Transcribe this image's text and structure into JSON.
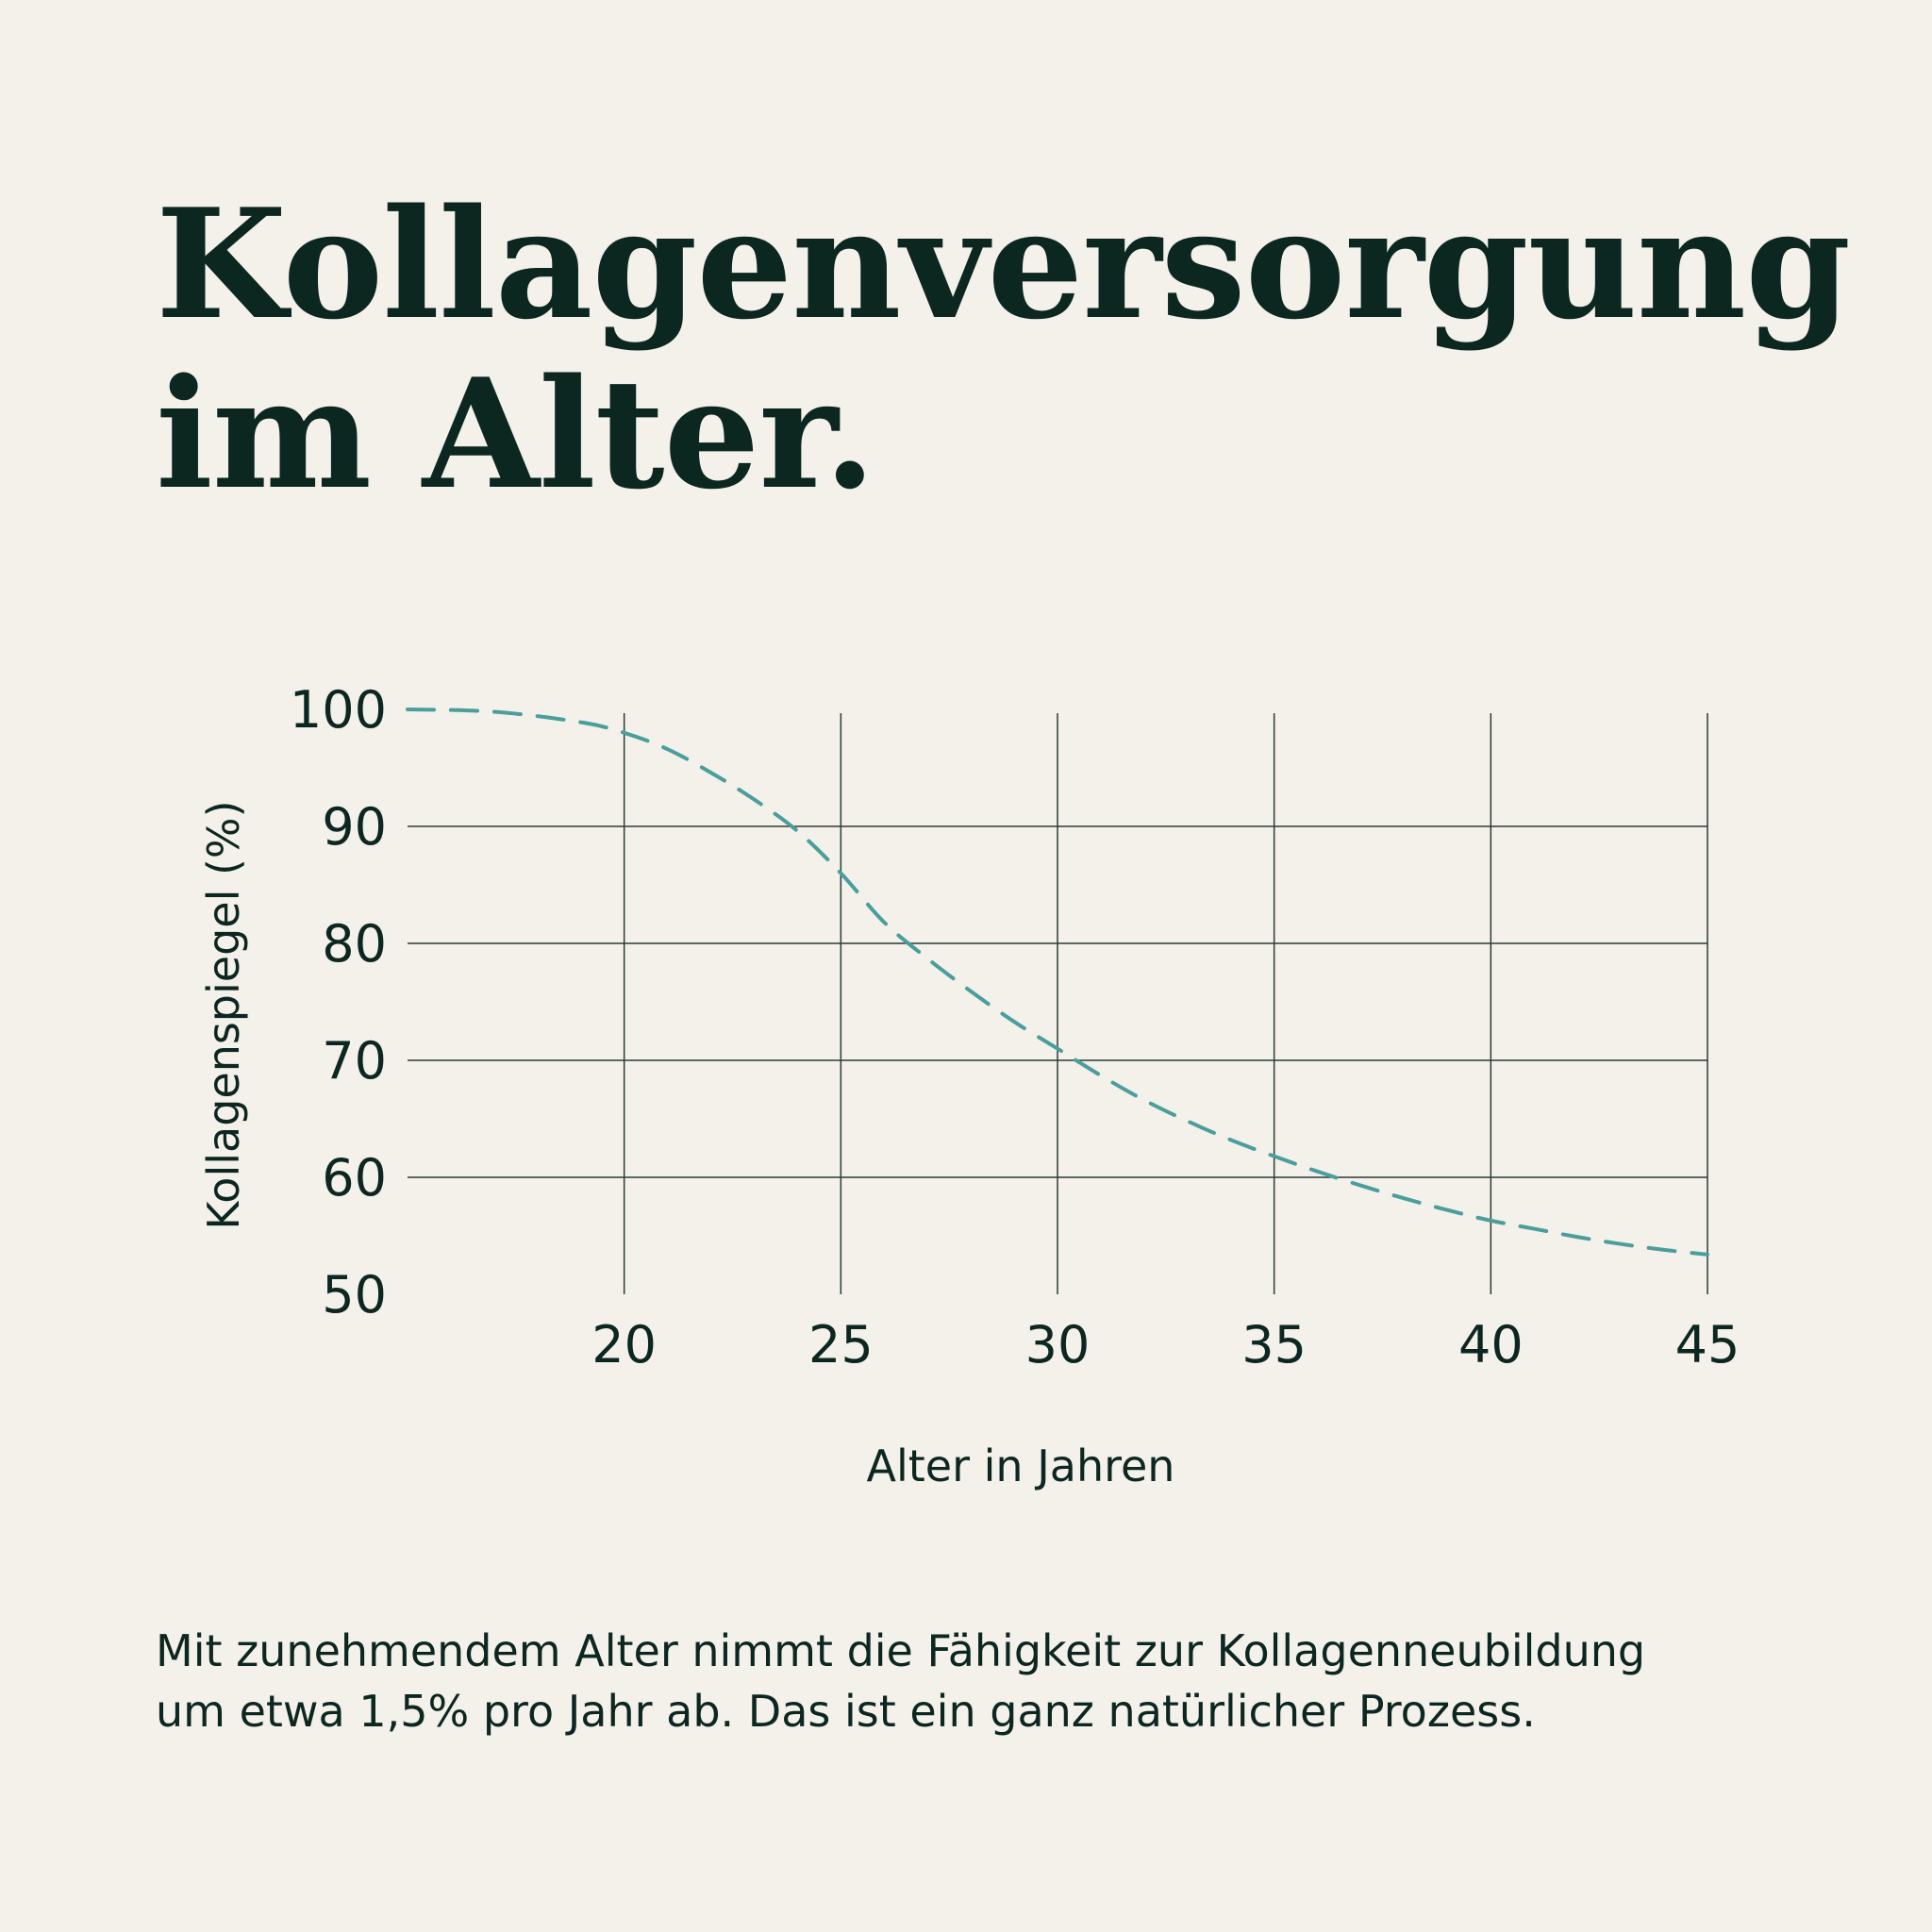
{
  "title": {
    "line1": "Kollagenversorgung",
    "line2": "im Alter."
  },
  "caption": {
    "line1": "Mit zunehmendem Alter nimmt die Fähigkeit zur Kollagenneubildung",
    "line2": "um etwa 1,5% pro Jahr ab. Das ist ein ganz natürlicher Prozess."
  },
  "colors": {
    "background": "#f4f0ea",
    "text": "#0c2620",
    "grid": "#2c3b36",
    "line": "#4a9e9b"
  },
  "chart_data": {
    "type": "line",
    "xlabel": "Alter in Jahren",
    "ylabel": "Kollagenspiegel (%)",
    "xlim": [
      15,
      45
    ],
    "ylim": [
      50,
      100
    ],
    "x_ticks": [
      20,
      25,
      30,
      35,
      40,
      45
    ],
    "y_ticks": [
      50,
      60,
      70,
      80,
      90,
      100
    ],
    "grid": true,
    "line_style": "dashed",
    "series": [
      {
        "x": [
          15,
          17,
          19,
          20,
          21,
          22,
          23,
          24,
          25,
          26,
          27,
          28,
          29,
          30,
          31,
          32,
          33,
          34,
          35,
          36,
          37,
          38,
          39,
          40,
          41,
          42,
          43,
          44,
          45
        ],
        "y": [
          100,
          99.8,
          98.9,
          98,
          96.6,
          94.6,
          92.3,
          89.6,
          86.0,
          81.8,
          78.7,
          75.9,
          73.3,
          71.0,
          68.7,
          66.6,
          64.8,
          63.2,
          61.8,
          60.5,
          59.3,
          58.2,
          57.2,
          56.3,
          55.6,
          54.9,
          54.3,
          53.8,
          53.4
        ]
      }
    ]
  }
}
